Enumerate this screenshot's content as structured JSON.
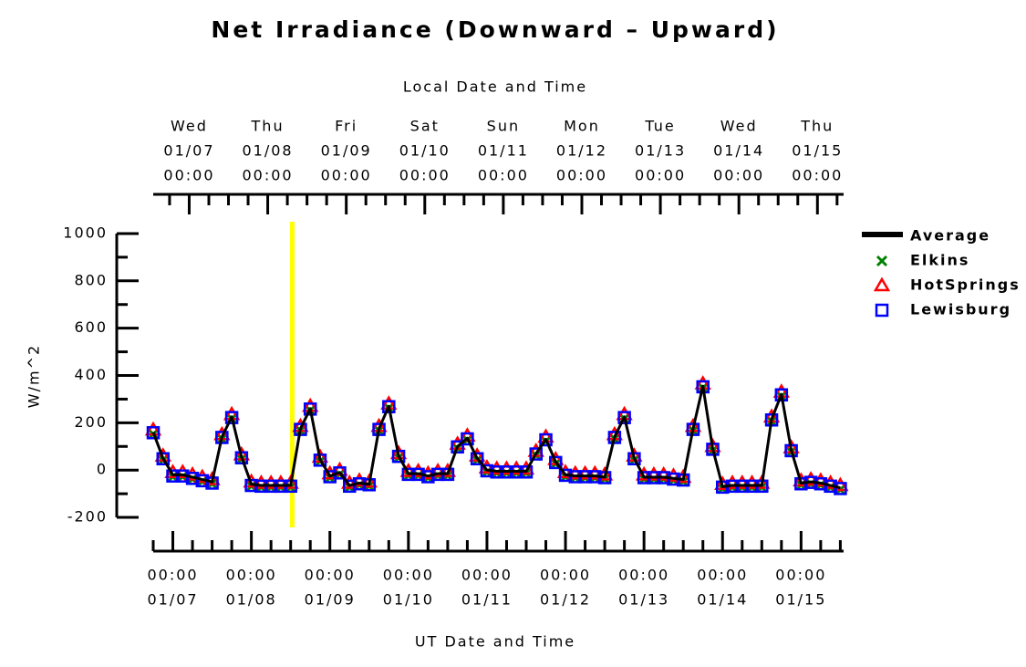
{
  "chart_data": {
    "type": "line",
    "title": "Net Irradiance (Downward – Upward)",
    "x_label": "UT Date and Time",
    "x2_label": "Local Date and Time",
    "y_label": "W/m^2",
    "x": [
      "01/06 18:00",
      "01/06 21:00",
      "01/07 00:00",
      "01/07 03:00",
      "01/07 06:00",
      "01/07 09:00",
      "01/07 12:00",
      "01/07 15:00",
      "01/07 18:00",
      "01/07 21:00",
      "01/08 00:00",
      "01/08 03:00",
      "01/08 06:00",
      "01/08 09:00",
      "01/08 12:00",
      "01/08 15:00",
      "01/08 18:00",
      "01/08 21:00",
      "01/09 00:00",
      "01/09 03:00",
      "01/09 06:00",
      "01/09 09:00",
      "01/09 12:00",
      "01/09 15:00",
      "01/09 18:00",
      "01/09 21:00",
      "01/10 00:00",
      "01/10 03:00",
      "01/10 06:00",
      "01/10 09:00",
      "01/10 12:00",
      "01/10 15:00",
      "01/10 18:00",
      "01/10 21:00",
      "01/11 00:00",
      "01/11 03:00",
      "01/11 06:00",
      "01/11 09:00",
      "01/11 12:00",
      "01/11 15:00",
      "01/11 18:00",
      "01/11 21:00",
      "01/12 00:00",
      "01/12 03:00",
      "01/12 06:00",
      "01/12 09:00",
      "01/12 12:00",
      "01/12 15:00",
      "01/12 18:00",
      "01/12 21:00",
      "01/13 00:00",
      "01/13 03:00",
      "01/13 06:00",
      "01/13 09:00",
      "01/13 12:00",
      "01/13 15:00",
      "01/13 18:00",
      "01/13 21:00",
      "01/14 00:00",
      "01/14 03:00",
      "01/14 06:00",
      "01/14 09:00",
      "01/14 12:00",
      "01/14 15:00",
      "01/14 18:00",
      "01/14 21:00",
      "01/15 00:00",
      "01/15 03:00",
      "01/15 06:00",
      "01/15 09:00",
      "01/15 12:00"
    ],
    "series": [
      {
        "name": "Average",
        "color": "#000000",
        "marker": "line",
        "values": [
          160,
          50,
          -20,
          -20,
          -30,
          -40,
          -50,
          140,
          225,
          55,
          -60,
          -65,
          -65,
          -65,
          -65,
          175,
          260,
          45,
          -25,
          -10,
          -65,
          -55,
          -60,
          175,
          270,
          60,
          -15,
          -15,
          -25,
          -15,
          -15,
          100,
          135,
          50,
          0,
          -5,
          -5,
          -5,
          -5,
          70,
          130,
          35,
          -20,
          -25,
          -25,
          -25,
          -30,
          140,
          225,
          50,
          -30,
          -30,
          -30,
          -35,
          -40,
          175,
          355,
          90,
          -70,
          -65,
          -65,
          -65,
          -65,
          215,
          320,
          85,
          -55,
          -50,
          -55,
          -65,
          -75
        ]
      },
      {
        "name": "Elkins",
        "color": "#008000",
        "marker": "x",
        "values": [
          152,
          42,
          -28,
          -28,
          -38,
          -48,
          -58,
          132,
          217,
          47,
          -68,
          -73,
          -73,
          -73,
          -73,
          167,
          252,
          37,
          -33,
          -18,
          -73,
          -63,
          -68,
          167,
          262,
          52,
          -23,
          -23,
          -33,
          -23,
          -23,
          92,
          127,
          42,
          -8,
          -13,
          -13,
          -13,
          -13,
          62,
          122,
          27,
          -28,
          -33,
          -33,
          -33,
          -38,
          132,
          217,
          42,
          -38,
          -38,
          -38,
          -43,
          -48,
          167,
          347,
          82,
          -78,
          -73,
          -73,
          -73,
          -73,
          207,
          312,
          77,
          -63,
          -58,
          -63,
          -73,
          -83
        ]
      },
      {
        "name": "HotSprings",
        "color": "#ff0000",
        "marker": "triangle",
        "values": [
          170,
          60,
          -10,
          -10,
          -20,
          -30,
          -40,
          150,
          235,
          65,
          -50,
          -55,
          -55,
          -55,
          -55,
          185,
          270,
          55,
          -15,
          0,
          -55,
          -45,
          -50,
          185,
          280,
          70,
          -5,
          -5,
          -15,
          -5,
          -5,
          110,
          145,
          60,
          10,
          5,
          5,
          5,
          5,
          80,
          140,
          45,
          -10,
          -15,
          -15,
          -15,
          -20,
          150,
          235,
          60,
          -20,
          -20,
          -20,
          -25,
          -30,
          185,
          365,
          100,
          -60,
          -55,
          -55,
          -55,
          -55,
          225,
          330,
          95,
          -45,
          -40,
          -45,
          -55,
          -65
        ]
      },
      {
        "name": "Lewisburg",
        "color": "#0000ff",
        "marker": "square",
        "values": [
          158,
          48,
          -25,
          -25,
          -35,
          -45,
          -55,
          138,
          222,
          52,
          -65,
          -68,
          -68,
          -68,
          -68,
          172,
          258,
          42,
          -28,
          -12,
          -68,
          -58,
          -62,
          172,
          268,
          58,
          -18,
          -18,
          -28,
          -18,
          -18,
          98,
          132,
          48,
          -3,
          -8,
          -8,
          -8,
          -8,
          68,
          128,
          32,
          -22,
          -28,
          -28,
          -28,
          -32,
          138,
          222,
          48,
          -32,
          -32,
          -32,
          -38,
          -42,
          172,
          352,
          88,
          -72,
          -68,
          -68,
          -68,
          -68,
          212,
          318,
          82,
          -58,
          -52,
          -58,
          -68,
          -78
        ]
      }
    ],
    "xlim": [
      "01/06 18:00",
      "01/15 13:00"
    ],
    "xticks": [
      {
        "value": "01/07 00:00",
        "label": [
          "00:00",
          "01/07"
        ]
      },
      {
        "value": "01/08 00:00",
        "label": [
          "00:00",
          "01/08"
        ]
      },
      {
        "value": "01/09 00:00",
        "label": [
          "00:00",
          "01/09"
        ]
      },
      {
        "value": "01/10 00:00",
        "label": [
          "00:00",
          "01/10"
        ]
      },
      {
        "value": "01/11 00:00",
        "label": [
          "00:00",
          "01/11"
        ]
      },
      {
        "value": "01/12 00:00",
        "label": [
          "00:00",
          "01/12"
        ]
      },
      {
        "value": "01/13 00:00",
        "label": [
          "00:00",
          "01/13"
        ]
      },
      {
        "value": "01/14 00:00",
        "label": [
          "00:00",
          "01/14"
        ]
      },
      {
        "value": "01/15 00:00",
        "label": [
          "00:00",
          "01/15"
        ]
      }
    ],
    "x2ticks": [
      {
        "value": "01/07 05:00",
        "label": [
          "Wed",
          "01/07",
          "00:00"
        ]
      },
      {
        "value": "01/08 05:00",
        "label": [
          "Thu",
          "01/08",
          "00:00"
        ]
      },
      {
        "value": "01/09 05:00",
        "label": [
          "Fri",
          "01/09",
          "00:00"
        ]
      },
      {
        "value": "01/10 05:00",
        "label": [
          "Sat",
          "01/10",
          "00:00"
        ]
      },
      {
        "value": "01/11 05:00",
        "label": [
          "Sun",
          "01/11",
          "00:00"
        ]
      },
      {
        "value": "01/12 05:00",
        "label": [
          "Mon",
          "01/12",
          "00:00"
        ]
      },
      {
        "value": "01/13 05:00",
        "label": [
          "Tue",
          "01/13",
          "00:00"
        ]
      },
      {
        "value": "01/14 05:00",
        "label": [
          "Wed",
          "01/14",
          "00:00"
        ]
      },
      {
        "value": "01/15 05:00",
        "label": [
          "Thu",
          "01/15",
          "00:00"
        ]
      }
    ],
    "xminor_step_hours": 6,
    "ylim": [
      -250,
      1050
    ],
    "yticks": [
      -200,
      0,
      200,
      400,
      600,
      800,
      1000
    ],
    "yminor_step": 100,
    "vline": {
      "x": "01/08 12:30",
      "color": "#ffff00"
    },
    "legend": "right"
  }
}
